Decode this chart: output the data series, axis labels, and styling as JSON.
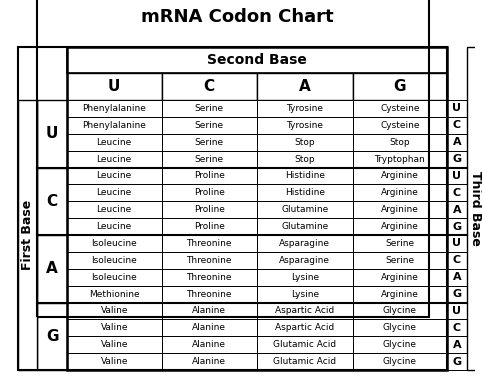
{
  "title": "mRNA Codon Chart",
  "title_color": "#000000",
  "second_base_label": "Second Base",
  "first_base_label": "First Base",
  "third_base_label": "Third Base",
  "second_base_bases": [
    "U",
    "C",
    "A",
    "G"
  ],
  "first_base_bases": [
    "U",
    "C",
    "A",
    "G"
  ],
  "third_base_bases": [
    "U",
    "C",
    "A",
    "G"
  ],
  "table_data": [
    [
      "Phenylalanine",
      "Serine",
      "Tyrosine",
      "Cysteine"
    ],
    [
      "Phenylalanine",
      "Serine",
      "Tyrosine",
      "Cysteine"
    ],
    [
      "Leucine",
      "Serine",
      "Stop",
      "Stop"
    ],
    [
      "Leucine",
      "Serine",
      "Stop",
      "Tryptophan"
    ],
    [
      "Leucine",
      "Proline",
      "Histidine",
      "Arginine"
    ],
    [
      "Leucine",
      "Proline",
      "Histidine",
      "Arginine"
    ],
    [
      "Leucine",
      "Proline",
      "Glutamine",
      "Arginine"
    ],
    [
      "Leucine",
      "Proline",
      "Glutamine",
      "Arginine"
    ],
    [
      "Isoleucine",
      "Threonine",
      "Asparagine",
      "Serine"
    ],
    [
      "Isoleucine",
      "Threonine",
      "Asparagine",
      "Serine"
    ],
    [
      "Isoleucine",
      "Threonine",
      "Lysine",
      "Arginine"
    ],
    [
      "Methionine",
      "Threonine",
      "Lysine",
      "Arginine"
    ],
    [
      "Valine",
      "Alanine",
      "Aspartic Acid",
      "Glycine"
    ],
    [
      "Valine",
      "Alanine",
      "Aspartic Acid",
      "Glycine"
    ],
    [
      "Valine",
      "Alanine",
      "Glutamic Acid",
      "Glycine"
    ],
    [
      "Valine",
      "Alanine",
      "Glutamic Acid",
      "Glycine"
    ]
  ],
  "bg_color": "#ffffff",
  "border_color": "#000000",
  "text_color": "#000000",
  "title_fontsize": 13,
  "header_fontsize": 10,
  "base_letter_fontsize": 11,
  "cell_fontsize": 6.5,
  "side_label_fontsize": 9
}
